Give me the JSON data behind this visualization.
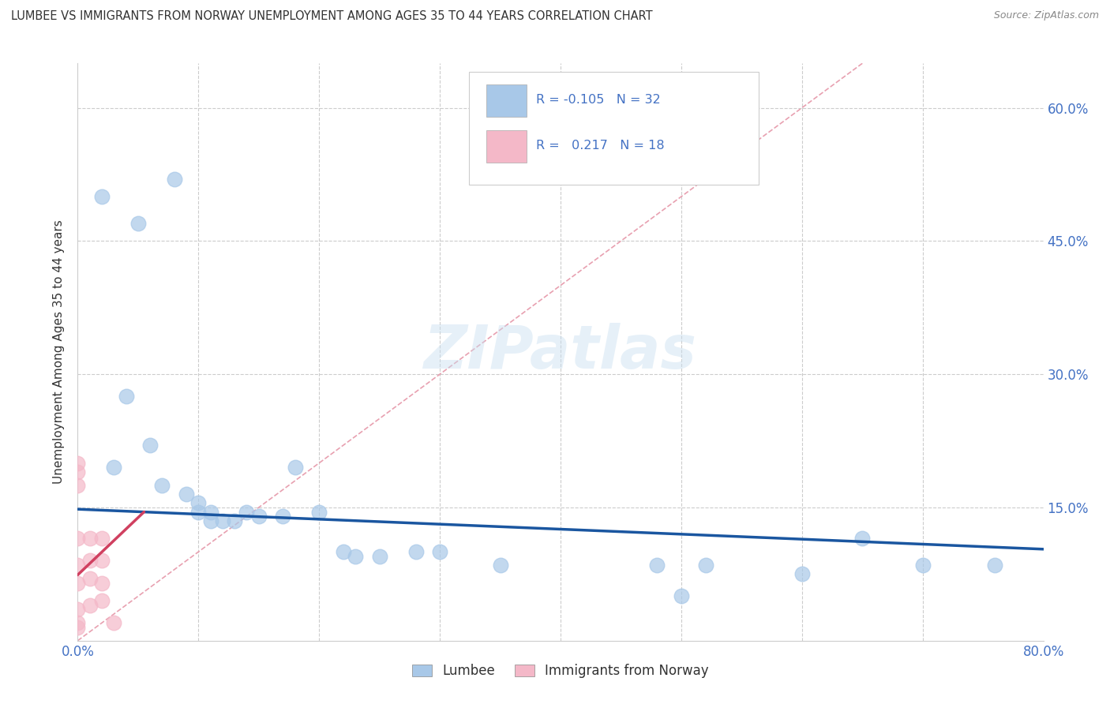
{
  "title": "LUMBEE VS IMMIGRANTS FROM NORWAY UNEMPLOYMENT AMONG AGES 35 TO 44 YEARS CORRELATION CHART",
  "source": "Source: ZipAtlas.com",
  "ylabel": "Unemployment Among Ages 35 to 44 years",
  "xlim": [
    0.0,
    0.8
  ],
  "ylim": [
    0.0,
    0.65
  ],
  "xtick_positions": [
    0.0,
    0.1,
    0.2,
    0.3,
    0.4,
    0.5,
    0.6,
    0.7,
    0.8
  ],
  "xticklabels": [
    "0.0%",
    "",
    "",
    "",
    "",
    "",
    "",
    "",
    "80.0%"
  ],
  "ytick_positions": [
    0.0,
    0.15,
    0.3,
    0.45,
    0.6
  ],
  "ytick_labels": [
    "",
    "15.0%",
    "30.0%",
    "45.0%",
    "60.0%"
  ],
  "watermark": "ZIPatlas",
  "lumbee_R": "-0.105",
  "lumbee_N": "32",
  "norway_R": "0.217",
  "norway_N": "18",
  "lumbee_color": "#a8c8e8",
  "norway_color": "#f4b8c8",
  "lumbee_line_color": "#1a56a0",
  "norway_line_color": "#d04060",
  "diagonal_color": "#e8a0b0",
  "lumbee_scatter": [
    [
      0.02,
      0.5
    ],
    [
      0.05,
      0.47
    ],
    [
      0.08,
      0.52
    ],
    [
      0.04,
      0.275
    ],
    [
      0.06,
      0.22
    ],
    [
      0.03,
      0.195
    ],
    [
      0.07,
      0.175
    ],
    [
      0.09,
      0.165
    ],
    [
      0.1,
      0.155
    ],
    [
      0.1,
      0.145
    ],
    [
      0.11,
      0.145
    ],
    [
      0.11,
      0.135
    ],
    [
      0.12,
      0.135
    ],
    [
      0.13,
      0.135
    ],
    [
      0.14,
      0.145
    ],
    [
      0.15,
      0.14
    ],
    [
      0.17,
      0.14
    ],
    [
      0.18,
      0.195
    ],
    [
      0.2,
      0.145
    ],
    [
      0.22,
      0.1
    ],
    [
      0.23,
      0.095
    ],
    [
      0.25,
      0.095
    ],
    [
      0.28,
      0.1
    ],
    [
      0.3,
      0.1
    ],
    [
      0.35,
      0.085
    ],
    [
      0.48,
      0.085
    ],
    [
      0.5,
      0.05
    ],
    [
      0.52,
      0.085
    ],
    [
      0.6,
      0.075
    ],
    [
      0.65,
      0.115
    ],
    [
      0.7,
      0.085
    ],
    [
      0.76,
      0.085
    ]
  ],
  "norway_scatter": [
    [
      0.0,
      0.2
    ],
    [
      0.0,
      0.19
    ],
    [
      0.0,
      0.175
    ],
    [
      0.0,
      0.115
    ],
    [
      0.0,
      0.085
    ],
    [
      0.0,
      0.065
    ],
    [
      0.0,
      0.035
    ],
    [
      0.0,
      0.02
    ],
    [
      0.0,
      0.015
    ],
    [
      0.01,
      0.115
    ],
    [
      0.01,
      0.09
    ],
    [
      0.01,
      0.07
    ],
    [
      0.01,
      0.04
    ],
    [
      0.02,
      0.115
    ],
    [
      0.02,
      0.09
    ],
    [
      0.02,
      0.065
    ],
    [
      0.02,
      0.045
    ],
    [
      0.03,
      0.02
    ]
  ],
  "lumbee_trendline_x": [
    0.0,
    0.8
  ],
  "lumbee_trendline_y": [
    0.148,
    0.103
  ],
  "norway_trendline_x": [
    0.0,
    0.055
  ],
  "norway_trendline_y": [
    0.074,
    0.145
  ]
}
